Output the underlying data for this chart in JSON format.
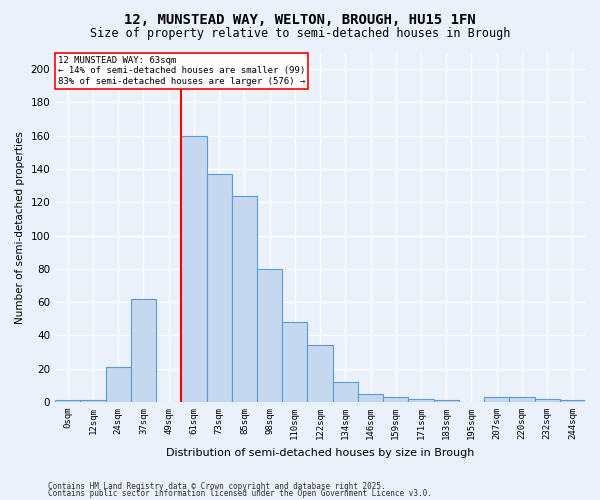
{
  "title": "12, MUNSTEAD WAY, WELTON, BROUGH, HU15 1FN",
  "subtitle": "Size of property relative to semi-detached houses in Brough",
  "xlabel": "Distribution of semi-detached houses by size in Brough",
  "ylabel": "Number of semi-detached properties",
  "bins": [
    "0sqm",
    "12sqm",
    "24sqm",
    "37sqm",
    "49sqm",
    "61sqm",
    "73sqm",
    "85sqm",
    "98sqm",
    "110sqm",
    "122sqm",
    "134sqm",
    "146sqm",
    "159sqm",
    "171sqm",
    "183sqm",
    "195sqm",
    "207sqm",
    "220sqm",
    "232sqm",
    "244sqm"
  ],
  "bar_values": [
    1,
    1,
    21,
    62,
    0,
    160,
    137,
    124,
    80,
    48,
    34,
    12,
    5,
    3,
    2,
    1,
    0,
    3,
    3,
    2,
    1
  ],
  "bar_color": "#c5d8f0",
  "bar_edge_color": "#5b9bd5",
  "property_line_bin_index": 5,
  "ylim": [
    0,
    210
  ],
  "yticks": [
    0,
    20,
    40,
    60,
    80,
    100,
    120,
    140,
    160,
    180,
    200
  ],
  "annotation_title": "12 MUNSTEAD WAY: 63sqm",
  "annotation_line1": "← 14% of semi-detached houses are smaller (99)",
  "annotation_line2": "83% of semi-detached houses are larger (576) →",
  "footer_line1": "Contains HM Land Registry data © Crown copyright and database right 2025.",
  "footer_line2": "Contains public sector information licensed under the Open Government Licence v3.0.",
  "bg_color": "#eaf1fb",
  "plot_bg_color": "#eaf1fb",
  "grid_color": "#ffffff",
  "title_fontsize": 10,
  "subtitle_fontsize": 8.5,
  "ylabel_fontsize": 7.5,
  "xlabel_fontsize": 8,
  "ytick_fontsize": 7.5,
  "xtick_fontsize": 6.5,
  "annot_fontsize": 6.5,
  "footer_fontsize": 5.5
}
